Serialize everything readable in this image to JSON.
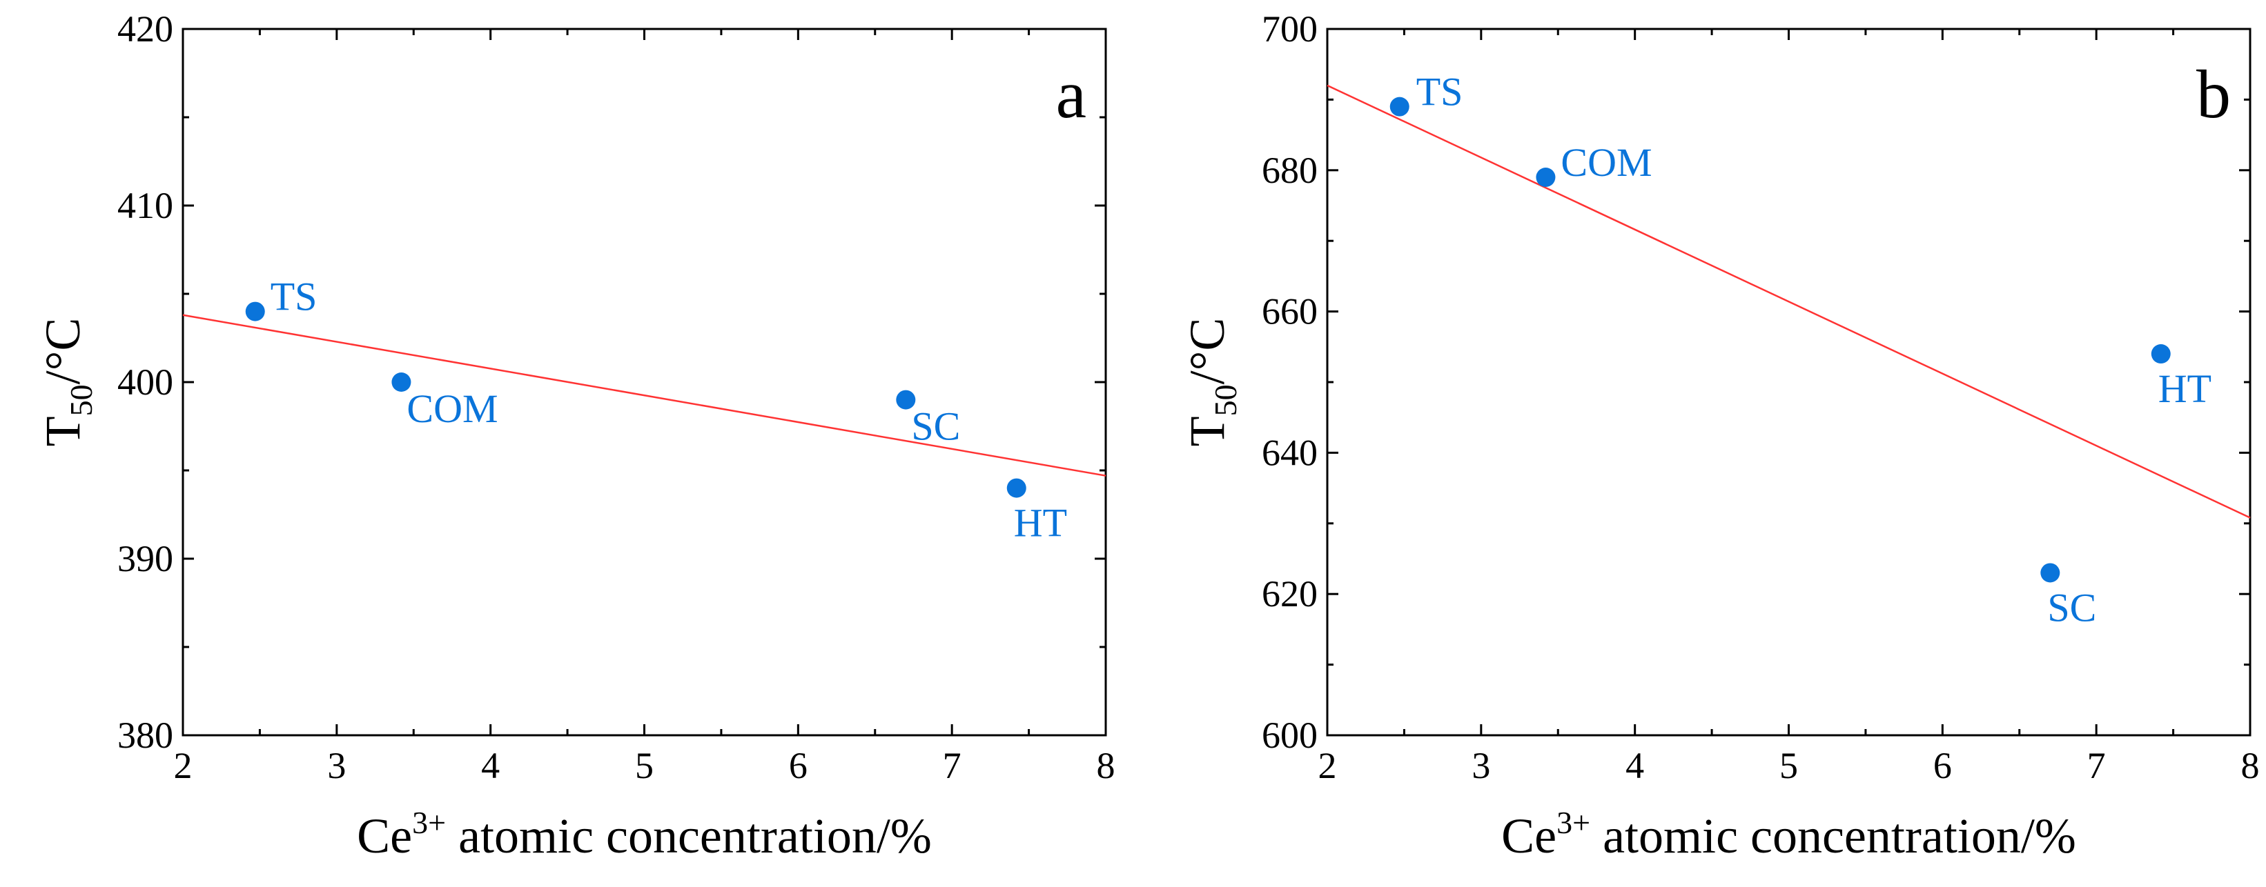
{
  "colors": {
    "points": "#0a74da",
    "fit_line": "#ff3333",
    "axes": "#000000"
  },
  "chart_data": [
    {
      "type": "scatter",
      "panel": "a",
      "xlabel": {
        "base": "Ce",
        "sup": "3+",
        "rest": " atomic concentration/%"
      },
      "ylabel": {
        "base": "T",
        "sub": "50",
        "rest": "/°C"
      },
      "xlim": [
        2,
        8
      ],
      "ylim": [
        380,
        420
      ],
      "xticks": [
        2,
        3,
        4,
        5,
        6,
        7,
        8
      ],
      "yticks": [
        380,
        390,
        400,
        410,
        420
      ],
      "points": [
        {
          "label": "TS",
          "x": 2.47,
          "y": 404,
          "label_pos": "upper-right"
        },
        {
          "label": "COM",
          "x": 3.42,
          "y": 400,
          "label_pos": "lower-right"
        },
        {
          "label": "SC",
          "x": 6.7,
          "y": 399,
          "label_pos": "lower-right"
        },
        {
          "label": "HT",
          "x": 7.42,
          "y": 394,
          "label_pos": "below"
        }
      ],
      "fit_line": {
        "x": [
          2,
          8
        ],
        "y": [
          403.8,
          394.7
        ]
      }
    },
    {
      "type": "scatter",
      "panel": "b",
      "xlabel": {
        "base": "Ce",
        "sup": "3+",
        "rest": " atomic concentration/%"
      },
      "ylabel": {
        "base": "T",
        "sub": "50",
        "rest": "/°C"
      },
      "xlim": [
        2,
        8
      ],
      "ylim": [
        600,
        700
      ],
      "xticks": [
        2,
        3,
        4,
        5,
        6,
        7,
        8
      ],
      "yticks": [
        600,
        620,
        640,
        660,
        680,
        700
      ],
      "points": [
        {
          "label": "TS",
          "x": 2.47,
          "y": 689,
          "label_pos": "right"
        },
        {
          "label": "COM",
          "x": 3.42,
          "y": 679,
          "label_pos": "upper-right"
        },
        {
          "label": "SC",
          "x": 6.7,
          "y": 623,
          "label_pos": "below"
        },
        {
          "label": "HT",
          "x": 7.42,
          "y": 654,
          "label_pos": "below"
        }
      ],
      "fit_line": {
        "x": [
          2,
          8
        ],
        "y": [
          692,
          630.8
        ]
      }
    }
  ]
}
